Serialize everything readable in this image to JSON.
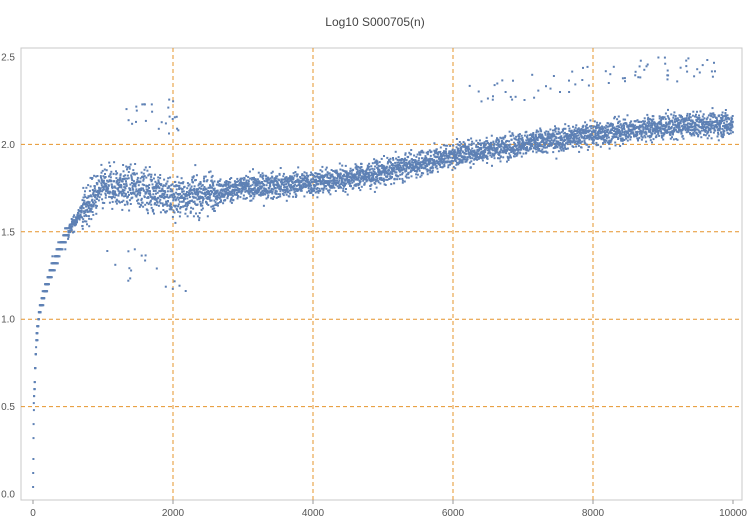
{
  "chart_data": {
    "type": "scatter",
    "title": "Log10 S000705(n)",
    "xlabel": "",
    "ylabel": "",
    "xlim": [
      0,
      10000
    ],
    "ylim": [
      0,
      2.5
    ],
    "x_ticks": [
      "0",
      "2000",
      "4000",
      "6000",
      "8000",
      "10000"
    ],
    "y_ticks": [
      "0.0",
      "0.5",
      "1.0",
      "1.5",
      "2.0",
      "2.5"
    ],
    "gridlines_x": [
      2000,
      4000,
      6000,
      8000
    ],
    "gridlines_y": [
      0.5,
      1.0,
      1.5,
      2.0
    ],
    "grid_color": "#e6942b",
    "point_color": "#5e81b5",
    "trend_description": "dense band of ~10000 points (one per n)",
    "sample_trend": [
      {
        "x": 1,
        "y": 0.0
      },
      {
        "x": 10,
        "y": 0.48
      },
      {
        "x": 50,
        "y": 0.9
      },
      {
        "x": 100,
        "y": 1.05
      },
      {
        "x": 200,
        "y": 1.2
      },
      {
        "x": 300,
        "y": 1.32
      },
      {
        "x": 400,
        "y": 1.42
      },
      {
        "x": 500,
        "y": 1.5
      },
      {
        "x": 700,
        "y": 1.62
      },
      {
        "x": 1000,
        "y": 1.75
      },
      {
        "x": 1500,
        "y": 1.76
      },
      {
        "x": 2000,
        "y": 1.7
      },
      {
        "x": 2500,
        "y": 1.72
      },
      {
        "x": 3000,
        "y": 1.75
      },
      {
        "x": 4000,
        "y": 1.78
      },
      {
        "x": 5000,
        "y": 1.84
      },
      {
        "x": 6000,
        "y": 1.94
      },
      {
        "x": 7000,
        "y": 2.0
      },
      {
        "x": 8000,
        "y": 2.06
      },
      {
        "x": 9000,
        "y": 2.1
      },
      {
        "x": 10000,
        "y": 2.12
      }
    ]
  }
}
